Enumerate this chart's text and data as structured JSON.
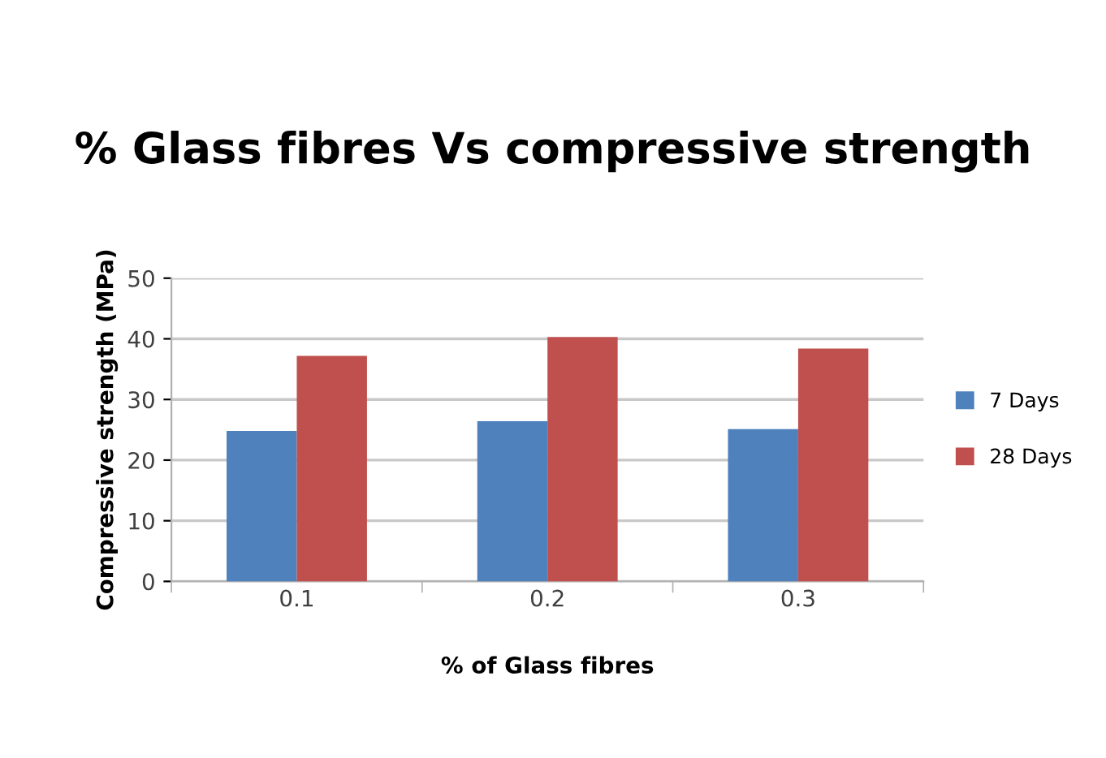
{
  "chart_data": {
    "type": "bar",
    "title": "% Glass fibres Vs compressive strength",
    "xlabel": "% of Glass fibres",
    "ylabel": "Compressive strength (MPa)",
    "categories": [
      "0.1",
      "0.2",
      "0.3"
    ],
    "series": [
      {
        "name": "7 Days",
        "color": "#4f81bd",
        "values": [
          24.8,
          26.4,
          25.1
        ]
      },
      {
        "name": "28 Days",
        "color": "#c0504d",
        "values": [
          37.2,
          40.3,
          38.4
        ]
      }
    ],
    "ylim": [
      0,
      50
    ],
    "yticks": [
      0,
      10,
      20,
      30,
      40,
      50
    ],
    "grid": "y",
    "legend": "right"
  }
}
